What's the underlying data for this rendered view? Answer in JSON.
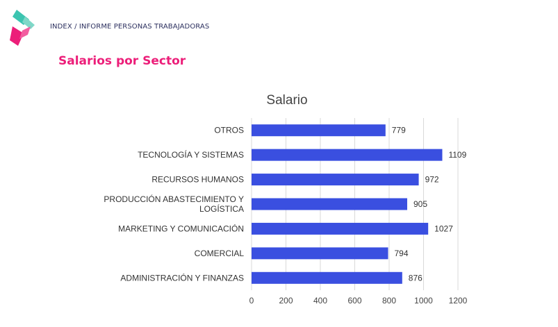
{
  "header": {
    "breadcrumb": "INDEX / INFORME PERSONAS TRABAJADORAS",
    "page_title": "Salarios por Sector"
  },
  "colors": {
    "accent_pink": "#ec1e79",
    "accent_teal": "#3cc4b0",
    "bar": "#3a4fe0",
    "breadcrumb_text": "#2b2f5e"
  },
  "chart_data": {
    "type": "bar",
    "orientation": "horizontal",
    "title": "Salario",
    "categories": [
      [
        "OTROS"
      ],
      [
        "TECNOLOGÍA Y SISTEMAS"
      ],
      [
        "RECURSOS HUMANOS"
      ],
      [
        "PRODUCCIÓN ABASTECIMIENTO Y",
        "LOGÍSTICA"
      ],
      [
        "MARKETING Y COMUNICACIÓN"
      ],
      [
        "COMERCIAL"
      ],
      [
        "ADMINISTRACIÓN Y FINANZAS"
      ]
    ],
    "values": [
      779,
      1109,
      972,
      905,
      1027,
      794,
      876
    ],
    "xlim": [
      0,
      1200
    ],
    "xticks": [
      0,
      200,
      400,
      600,
      800,
      1000,
      1200
    ],
    "grid": "vertical",
    "legend": "none",
    "data_labels": true
  }
}
